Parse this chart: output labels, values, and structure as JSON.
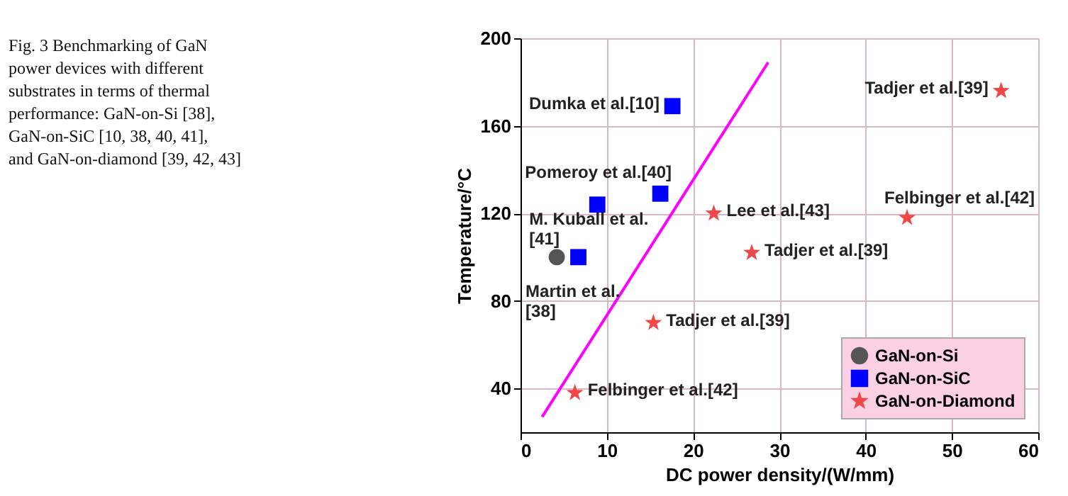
{
  "chart_data": {
    "type": "scatter",
    "xlabel": "DC power density/(W/mm)",
    "ylabel": "Temperature/°C",
    "xlim": [
      0,
      60
    ],
    "xticks": [
      0,
      10,
      20,
      30,
      40,
      50,
      60
    ],
    "ylim": [
      20,
      200
    ],
    "yticks": [
      40,
      80,
      120,
      160,
      200
    ],
    "grid": true,
    "legend": "bottom right",
    "series": [
      {
        "name": "GaN-on-Si",
        "marker": "circle",
        "color": "#555555",
        "x": [
          4.2
        ],
        "values": [
          100
        ]
      },
      {
        "name": "GaN-on-SiC",
        "marker": "square",
        "color": "#0000ff",
        "x": [
          6.7,
          8.9,
          16.2,
          17.6
        ],
        "values": [
          100,
          124,
          129,
          169
        ]
      },
      {
        "name": "GaN-on-Diamond",
        "marker": "star",
        "color": "#f04848",
        "x": [
          55.7,
          44.8,
          22.4,
          26.8,
          15.4,
          6.3
        ],
        "values": [
          176,
          118,
          120,
          102,
          70,
          38
        ]
      },
      {
        "type": "line",
        "marker": "none",
        "color": "#ff00ff",
        "x": [
          2.5,
          28.7
        ],
        "values": [
          27,
          189
        ]
      }
    ],
    "annotations": [
      "Fig. 3 Benchmarking of GaN power devices with different substrates in terms of thermal performance: GaN-on-Si [38], GaN-on-SiC [10, 38, 40, 41], and GaN-on-diamond [39, 42, 43]",
      {
        "text": "Dumka et al.[10]",
        "x": 17.6,
        "y": 169
      },
      {
        "text": "Pomeroy et al.[40]",
        "x": 16.2,
        "y": 129
      },
      {
        "text": "M. Kuball et al.\n[41]",
        "x": 8.9,
        "y": 124
      },
      {
        "text": "Martin et al.\n[38]",
        "x": 4.2,
        "y": 100
      },
      {
        "text": "Tadjer et al.[39]",
        "x": 55.7,
        "y": 176
      },
      {
        "text": "Felbinger et al.[42]",
        "x": 44.8,
        "y": 118
      },
      {
        "text": "Lee et al.[43]",
        "x": 22.4,
        "y": 120
      },
      {
        "text": "Tadjer et al.[39]",
        "x": 26.8,
        "y": 102
      },
      {
        "text": "Tadjer et al.[39]",
        "x": 15.4,
        "y": 70
      },
      {
        "text": "Felbinger et al.[42]",
        "x": 6.3,
        "y": 38
      }
    ]
  }
}
